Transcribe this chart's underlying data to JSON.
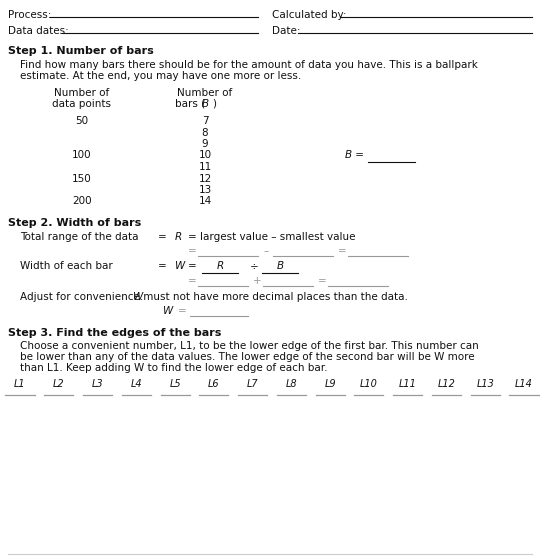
{
  "bg_color": "#ffffff",
  "text_color": "#111111",
  "gray_color": "#999999",
  "line_color": "#555555",
  "step1_title": "Step 1. Number of bars",
  "step1_body1": "Find how many bars there should be for the amount of data you have. This is a ballpark",
  "step1_body2": "estimate. At the end, you may have one more or less.",
  "data_points": [
    "50",
    "",
    "",
    "100",
    "",
    "150",
    "",
    "200"
  ],
  "bars": [
    "7",
    "8",
    "9",
    "10",
    "11",
    "12",
    "13",
    "14"
  ],
  "step2_title": "Step 2. Width of bars",
  "step3_title": "Step 3. Find the edges of the bars",
  "step3_body1": "Choose a convenient number, L1, to be the lower edge of the first bar. This number can",
  "step3_body2": "be lower than any of the data values. The lower edge of the second bar will be W more",
  "step3_body3": "than L1. Keep adding W to find the lower edge of each bar.",
  "l_labels": [
    "L1",
    "L2",
    "L3",
    "L4",
    "L5",
    "L6",
    "L7",
    "L8",
    "L9",
    "L10",
    "L11",
    "L12",
    "L13",
    "L14"
  ],
  "fs": 7.5,
  "fs_bold": 8.0
}
